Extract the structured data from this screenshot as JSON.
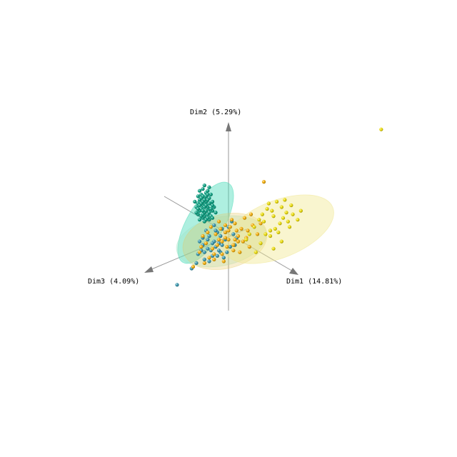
{
  "chart_data": {
    "type": "scatter",
    "title": "",
    "axes": [
      {
        "name": "dim1",
        "label": "Dim1 (14.81%)"
      },
      {
        "name": "dim2",
        "label": "Dim2 (5.29%)"
      },
      {
        "name": "dim3",
        "label": "Dim3 (4.09%)"
      }
    ],
    "grid": false,
    "legend": "none",
    "series": [
      {
        "color": "#00997a",
        "ellipse_fill": "#3fd9b4",
        "points": [
          [
            -1.6,
            1.8
          ],
          [
            -1.4,
            2.0
          ],
          [
            -1.8,
            1.5
          ],
          [
            -1.2,
            1.6
          ],
          [
            -1.5,
            2.2
          ],
          [
            -1.9,
            1.9
          ],
          [
            -1.3,
            1.3
          ],
          [
            -1.7,
            2.4
          ],
          [
            -1.1,
            1.9
          ],
          [
            -2.0,
            1.7
          ],
          [
            -1.5,
            1.4
          ],
          [
            -1.4,
            2.5
          ],
          [
            -1.8,
            2.1
          ],
          [
            -1.2,
            2.2
          ],
          [
            -1.6,
            1.1
          ],
          [
            -1.0,
            1.5
          ],
          [
            -1.7,
            1.6
          ],
          [
            -1.3,
            2.6
          ],
          [
            -1.9,
            1.3
          ],
          [
            -1.1,
            1.2
          ],
          [
            -1.5,
            1.9
          ],
          [
            -1.6,
            2.7
          ],
          [
            -2.1,
            2.0
          ],
          [
            -1.4,
            1.0
          ],
          [
            -1.2,
            2.8
          ],
          [
            -1.8,
            1.0
          ],
          [
            -1.0,
            2.0
          ],
          [
            -1.5,
            2.9
          ],
          [
            -1.3,
            1.7
          ],
          [
            -1.7,
            1.2
          ],
          [
            -0.9,
            1.7
          ],
          [
            -1.6,
            2.3
          ],
          [
            -1.4,
            1.5
          ],
          [
            -2.0,
            1.4
          ],
          [
            -1.1,
            2.4
          ],
          [
            -1.5,
            0.9
          ],
          [
            -1.3,
            2.1
          ],
          [
            -1.8,
            2.6
          ],
          [
            -1.2,
            1.0
          ],
          [
            -1.6,
            1.5
          ],
          [
            -0.8,
            1.4
          ],
          [
            -1.9,
            2.3
          ],
          [
            -1.4,
            2.3
          ],
          [
            -1.7,
            1.9
          ],
          [
            -1.0,
            1.1
          ],
          [
            -1.5,
            1.2
          ],
          [
            -1.2,
            1.4
          ],
          [
            -1.6,
            2.0
          ],
          [
            -1.8,
            1.8
          ],
          [
            -1.3,
            2.4
          ],
          [
            -1.1,
            1.6
          ],
          [
            -1.5,
            1.7
          ],
          [
            -1.4,
            1.8
          ],
          [
            -1.7,
            2.2
          ],
          [
            -1.2,
            1.9
          ],
          [
            -1.6,
            1.3
          ],
          [
            -1.9,
            1.6
          ],
          [
            -1.0,
            1.8
          ],
          [
            -1.3,
            1.1
          ],
          [
            -1.5,
            2.1
          ]
        ]
      },
      {
        "color": "#2e8fa8",
        "ellipse_fill": "#9fe0c0",
        "points": [
          [
            -1.3,
            -0.6
          ],
          [
            -0.9,
            -0.2
          ],
          [
            -0.5,
            -0.8
          ],
          [
            -1.6,
            -0.4
          ],
          [
            -0.2,
            -0.1
          ],
          [
            -1.0,
            -1.0
          ],
          [
            -0.7,
            0.3
          ],
          [
            -1.9,
            -0.9
          ],
          [
            0.1,
            -0.5
          ],
          [
            -1.2,
            0.1
          ],
          [
            -0.4,
            0.5
          ],
          [
            -1.5,
            -1.2
          ],
          [
            0.3,
            0.2
          ],
          [
            -0.8,
            -0.5
          ],
          [
            -1.8,
            -0.2
          ],
          [
            -0.3,
            -1.1
          ],
          [
            -1.1,
            -0.7
          ],
          [
            0.0,
            0.6
          ],
          [
            -0.6,
            -0.3
          ],
          [
            -1.4,
            0.4
          ],
          [
            -2.0,
            -1.4
          ],
          [
            0.4,
            -0.4
          ],
          [
            -0.9,
            0.7
          ],
          [
            -1.7,
            -0.7
          ],
          [
            -0.1,
            -0.8
          ],
          [
            -1.3,
            -0.1
          ],
          [
            -0.5,
            0.1
          ],
          [
            -2.3,
            -1.7
          ],
          [
            0.2,
            0.9
          ],
          [
            -0.7,
            -1.0
          ],
          [
            -1.2,
            -1.3
          ],
          [
            -0.4,
            -0.4
          ],
          [
            -1.6,
            0.0
          ],
          [
            -0.8,
            0.4
          ],
          [
            -3.2,
            -2.6
          ],
          [
            -0.2,
            0.3
          ],
          [
            -1.0,
            -0.3
          ],
          [
            -1.5,
            -0.8
          ],
          [
            0.5,
            0.0
          ],
          [
            -0.6,
            -0.7
          ]
        ]
      },
      {
        "color": "#f0a800",
        "ellipse_fill": "#e6c864",
        "points": [
          [
            -0.6,
            -0.1
          ],
          [
            -0.2,
            0.3
          ],
          [
            0.3,
            -0.4
          ],
          [
            -1.0,
            -0.6
          ],
          [
            0.6,
            0.1
          ],
          [
            -0.4,
            -0.9
          ],
          [
            0.1,
            0.6
          ],
          [
            -1.4,
            -0.3
          ],
          [
            0.9,
            -0.2
          ],
          [
            -0.8,
            0.2
          ],
          [
            0.4,
            0.8
          ],
          [
            -1.2,
            -1.1
          ],
          [
            1.2,
            0.4
          ],
          [
            -0.1,
            -0.5
          ],
          [
            -1.6,
            0.1
          ],
          [
            0.7,
            -0.8
          ],
          [
            -0.5,
            0.5
          ],
          [
            1.5,
            0.7
          ],
          [
            0.0,
            -0.1
          ],
          [
            -1.8,
            -0.8
          ],
          [
            1.0,
            1.1
          ],
          [
            -0.3,
            -1.3
          ],
          [
            0.5,
            0.4
          ],
          [
            -1.1,
            0.6
          ],
          [
            1.8,
            0.2
          ],
          [
            -0.7,
            -0.4
          ],
          [
            0.2,
            1.0
          ],
          [
            -1.5,
            -1.4
          ],
          [
            1.3,
            -0.5
          ],
          [
            -0.2,
            0.0
          ],
          [
            0.8,
            0.5
          ],
          [
            -0.9,
            -0.9
          ],
          [
            0.6,
            -0.2
          ],
          [
            -1.3,
            0.3
          ],
          [
            0.3,
            -0.7
          ],
          [
            -0.6,
            0.9
          ],
          [
            1.1,
            0.0
          ],
          [
            -0.4,
            -0.2
          ],
          [
            2.0,
            0.8
          ],
          [
            -1.7,
            -0.5
          ],
          [
            0.0,
            0.4
          ],
          [
            -0.9,
            -1.2
          ],
          [
            0.4,
            -0.1
          ],
          [
            -0.2,
            0.7
          ],
          [
            1.4,
            1.3
          ],
          [
            2.2,
            3.1
          ],
          [
            -2.2,
            -1.6
          ]
        ]
      },
      {
        "color": "#e8d800",
        "ellipse_fill": "#f0e68c",
        "points": [
          [
            2.4,
            1.6
          ],
          [
            2.8,
            1.2
          ],
          [
            3.2,
            0.8
          ],
          [
            2.6,
            0.4
          ],
          [
            3.6,
            1.4
          ],
          [
            2.2,
            0.9
          ],
          [
            3.0,
            2.0
          ],
          [
            3.8,
            0.6
          ],
          [
            2.5,
            1.9
          ],
          [
            3.4,
            1.1
          ],
          [
            4.0,
            1.3
          ],
          [
            2.9,
            0.5
          ],
          [
            3.3,
            1.7
          ],
          [
            2.1,
            1.3
          ],
          [
            3.7,
            0.9
          ],
          [
            2.7,
            1.5
          ],
          [
            3.1,
            0.3
          ],
          [
            4.3,
            1.0
          ],
          [
            2.3,
            0.2
          ],
          [
            3.5,
            2.1
          ],
          [
            1.9,
            1.0
          ],
          [
            3.9,
            1.8
          ],
          [
            2.6,
            0.1
          ],
          [
            4.5,
            1.5
          ],
          [
            1.6,
            0.6
          ],
          [
            2.0,
            -0.3
          ],
          [
            1.3,
            0.2
          ],
          [
            2.8,
            -0.6
          ],
          [
            1.1,
            -0.1
          ],
          [
            3.3,
            -0.2
          ],
          [
            1.7,
            -0.8
          ],
          [
            9.5,
            6.0
          ]
        ]
      }
    ]
  }
}
